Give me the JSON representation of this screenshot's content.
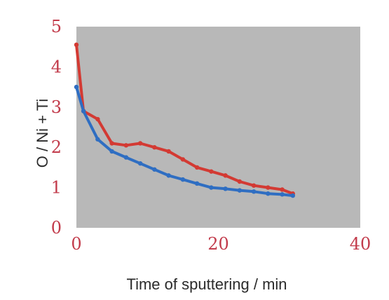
{
  "chart_data": {
    "type": "line",
    "title": "",
    "xlabel": "Time of sputtering / min",
    "ylabel": "O / Ni + Ti",
    "xlim": [
      0,
      40
    ],
    "ylim": [
      0,
      5
    ],
    "x_ticks": [
      0,
      20,
      40
    ],
    "y_ticks": [
      0,
      1,
      2,
      3,
      4,
      5
    ],
    "grid": false,
    "legend": "none",
    "plot_background": "#b8b8b8",
    "tick_label_color": "#c23b4b",
    "series": [
      {
        "color": "#d33a33",
        "x": [
          0,
          1,
          3,
          5,
          7,
          9,
          11,
          13,
          15,
          17,
          19,
          21,
          23,
          25,
          27,
          29,
          30.5
        ],
        "y": [
          4.55,
          2.9,
          2.7,
          2.1,
          2.05,
          2.1,
          2.0,
          1.9,
          1.7,
          1.5,
          1.4,
          1.3,
          1.15,
          1.05,
          1.0,
          0.95,
          0.85
        ]
      },
      {
        "color": "#2f6ec2",
        "x": [
          0,
          1,
          3,
          5,
          7,
          9,
          11,
          13,
          15,
          17,
          19,
          21,
          23,
          25,
          27,
          29,
          30.5
        ],
        "y": [
          3.5,
          2.9,
          2.2,
          1.9,
          1.75,
          1.6,
          1.45,
          1.3,
          1.2,
          1.1,
          1.0,
          0.97,
          0.93,
          0.9,
          0.85,
          0.83,
          0.8
        ]
      }
    ]
  }
}
